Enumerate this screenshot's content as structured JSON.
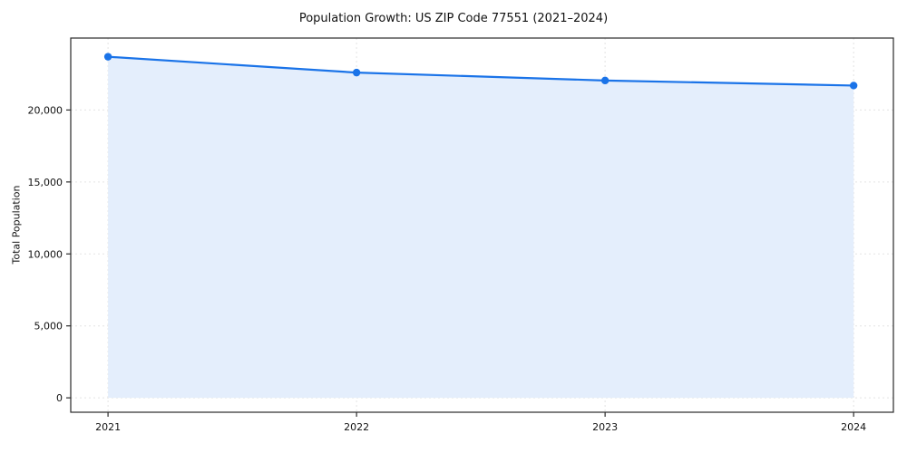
{
  "chart_data": {
    "type": "line",
    "title": "Population Growth: US ZIP Code 77551 (2021–2024)",
    "xlabel": "",
    "ylabel": "Total Population",
    "x": [
      2021,
      2022,
      2023,
      2024
    ],
    "x_tick_labels": [
      "2021",
      "2022",
      "2023",
      "2024"
    ],
    "series": [
      {
        "name": "Total Population",
        "values": [
          23700,
          22600,
          22050,
          21700
        ]
      }
    ],
    "yticks": [
      0,
      5000,
      10000,
      15000,
      20000
    ],
    "ytick_labels": [
      "0",
      "5,000",
      "10,000",
      "15,000",
      "20,000"
    ],
    "xlim": [
      2020.85,
      2024.16
    ],
    "ylim": [
      -1000,
      25000
    ],
    "grid": true,
    "legend_position": "none",
    "area_fill": true,
    "colors": {
      "line": "#1a73e8",
      "marker": "#1a73e8",
      "fill": "#e4eefc",
      "grid": "#e3e3e3",
      "axis": "#2a2a2a",
      "text": "#111111"
    }
  }
}
